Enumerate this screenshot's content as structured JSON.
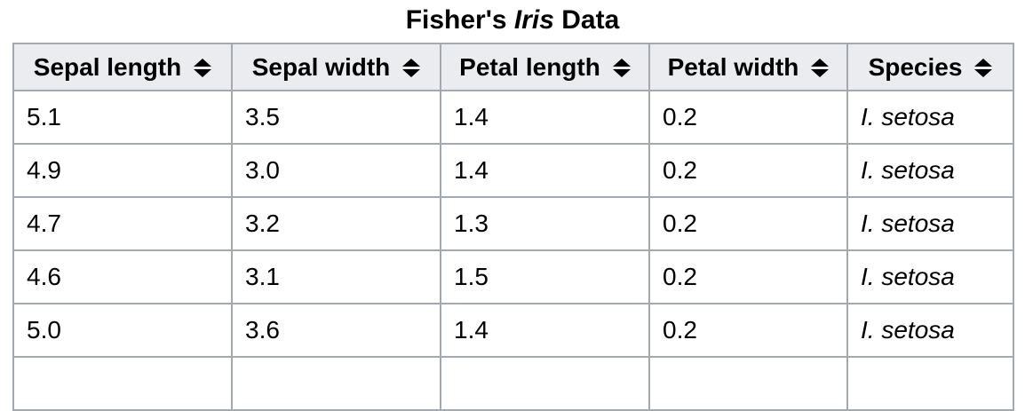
{
  "title": {
    "prefix": "Fisher's ",
    "italic_word": "Iris",
    "suffix": " Data"
  },
  "table": {
    "columns": [
      "Sepal length",
      "Sepal width",
      "Petal length",
      "Petal width",
      "Species"
    ],
    "sort_icon": "up-down-sort-arrows",
    "rows": [
      [
        "5.1",
        "3.5",
        "1.4",
        "0.2",
        "I. setosa"
      ],
      [
        "4.9",
        "3.0",
        "1.4",
        "0.2",
        "I. setosa"
      ],
      [
        "4.7",
        "3.2",
        "1.3",
        "0.2",
        "I. setosa"
      ],
      [
        "4.6",
        "3.1",
        "1.5",
        "0.2",
        "I. setosa"
      ],
      [
        "5.0",
        "3.6",
        "1.4",
        "0.2",
        "I. setosa"
      ]
    ],
    "partial_row": [
      "",
      "",
      "",
      "",
      ""
    ]
  },
  "colors": {
    "header_background": "#eaecf0",
    "border": "#a2a9b1",
    "text": "#000000",
    "page_background": "#ffffff"
  }
}
